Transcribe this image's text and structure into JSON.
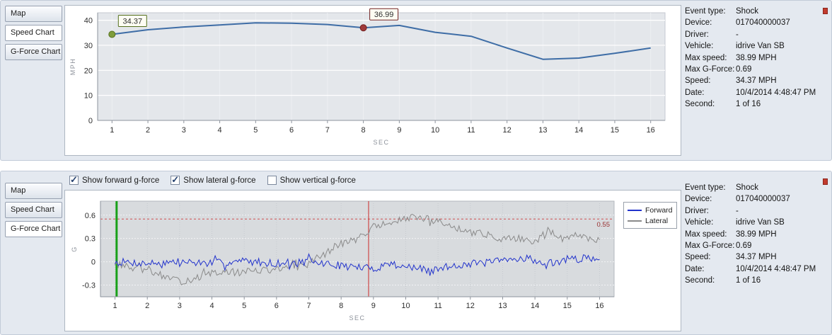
{
  "speed_panel": {
    "tabs": [
      {
        "label": "Map"
      },
      {
        "label": "Speed Chart",
        "selected": true
      },
      {
        "label": "G-Force Chart"
      }
    ]
  },
  "gforce_panel": {
    "tabs": [
      {
        "label": "Map"
      },
      {
        "label": "Speed Chart"
      },
      {
        "label": "G-Force Chart",
        "selected": true
      }
    ],
    "checkboxes": [
      {
        "label": "Show forward g-force",
        "selected": true
      },
      {
        "label": "Show lateral g-force",
        "selected": true
      },
      {
        "label": "Show vertical g-force",
        "selected": false
      }
    ],
    "legend": [
      {
        "label": "Forward",
        "color": "#2233cc"
      },
      {
        "label": "Lateral",
        "color": "#8a8a8a"
      }
    ]
  },
  "info": {
    "rows": [
      {
        "label": "Event type:",
        "value": "Shock"
      },
      {
        "label": "Device:",
        "value": "017040000037"
      },
      {
        "label": "Driver:",
        "value": "-"
      },
      {
        "label": "Vehicle:",
        "value": "idrive Van SB"
      },
      {
        "label": "Max speed:",
        "value": "38.99 MPH"
      },
      {
        "label": "Max G-Force:",
        "value": "0.69"
      },
      {
        "label": "Speed:",
        "value": "34.37 MPH"
      },
      {
        "label": "Date:",
        "value": "10/4/2014 4:48:47 PM"
      },
      {
        "label": "Second:",
        "value": "1 of 16"
      }
    ]
  },
  "chart_data": [
    {
      "type": "line",
      "title": "Speed Chart",
      "xlabel": "SEC",
      "ylabel": "MPH",
      "ylim": [
        0,
        40
      ],
      "yticks": [
        0,
        10,
        20,
        30,
        40
      ],
      "x": [
        1,
        2,
        3,
        4,
        5,
        6,
        7,
        8,
        9,
        10,
        11,
        12,
        13,
        14,
        15,
        16
      ],
      "series": [
        {
          "name": "Speed",
          "color": "#3e6da6",
          "values": [
            34.37,
            36.2,
            37.3,
            38.1,
            38.99,
            38.8,
            38.3,
            36.99,
            37.95,
            35.2,
            33.6,
            28.9,
            24.4,
            24.9,
            26.8,
            28.9
          ]
        }
      ],
      "annotations": [
        {
          "x": 1,
          "y": 34.37,
          "label": "34.37",
          "marker": "#7f9d3c",
          "edge": "#55701e"
        },
        {
          "x": 8,
          "y": 36.99,
          "label": "36.99",
          "marker": "#a03a3a",
          "edge": "#702020"
        }
      ]
    },
    {
      "type": "line",
      "title": "G-Force Chart",
      "xlabel": "SEC",
      "ylabel": "G",
      "ylim": [
        -0.3,
        0.6
      ],
      "yticks": [
        -0.3,
        0,
        0.3,
        0.6
      ],
      "xticks": [
        1,
        2,
        3,
        4,
        5,
        6,
        7,
        8,
        9,
        10,
        11,
        12,
        13,
        14,
        15,
        16
      ],
      "threshold": {
        "y": 0.55,
        "label": "0.55",
        "color": "#d05050"
      },
      "vlines": [
        {
          "x": 1.05,
          "color": "#18a018",
          "width": 3
        },
        {
          "x": 8.85,
          "color": "#cc2b2b",
          "width": 1
        }
      ],
      "series": [
        {
          "name": "Forward",
          "color": "#2233cc",
          "noise": 0.05,
          "seed": 7,
          "waypoints": [
            [
              1,
              0
            ],
            [
              2,
              -0.02
            ],
            [
              3,
              0
            ],
            [
              4,
              -0.02
            ],
            [
              5,
              0.01
            ],
            [
              6,
              -0.02
            ],
            [
              7,
              0
            ],
            [
              8,
              -0.05
            ],
            [
              9,
              -0.09
            ],
            [
              9.5,
              -0.02
            ],
            [
              10,
              -0.06
            ],
            [
              10.8,
              -0.12
            ],
            [
              11.5,
              -0.04
            ],
            [
              12,
              -0.03
            ],
            [
              13,
              0.01
            ],
            [
              13.8,
              0.06
            ],
            [
              14.2,
              -0.04
            ],
            [
              15,
              0.03
            ],
            [
              16,
              0.05
            ]
          ]
        },
        {
          "name": "Lateral",
          "color": "#8a8a8a",
          "noise": 0.045,
          "seed": 13,
          "waypoints": [
            [
              1,
              -0.02
            ],
            [
              1.5,
              -0.08
            ],
            [
              2,
              -0.12
            ],
            [
              2.5,
              -0.18
            ],
            [
              3,
              -0.26
            ],
            [
              3.5,
              -0.21
            ],
            [
              4,
              -0.15
            ],
            [
              5,
              -0.12
            ],
            [
              6,
              -0.1
            ],
            [
              6.5,
              -0.07
            ],
            [
              7,
              -0.01
            ],
            [
              7.5,
              0.1
            ],
            [
              8,
              0.24
            ],
            [
              8.5,
              0.29
            ],
            [
              9,
              0.45
            ],
            [
              9.5,
              0.5
            ],
            [
              10,
              0.55
            ],
            [
              10.3,
              0.58
            ],
            [
              10.7,
              0.5
            ],
            [
              11,
              0.52
            ],
            [
              11.5,
              0.44
            ],
            [
              12,
              0.4
            ],
            [
              12.5,
              0.34
            ],
            [
              13,
              0.29
            ],
            [
              13.5,
              0.3
            ],
            [
              14,
              0.24
            ],
            [
              14.4,
              0.42
            ],
            [
              14.8,
              0.3
            ],
            [
              15.3,
              0.34
            ],
            [
              16,
              0.28
            ]
          ]
        }
      ]
    }
  ]
}
